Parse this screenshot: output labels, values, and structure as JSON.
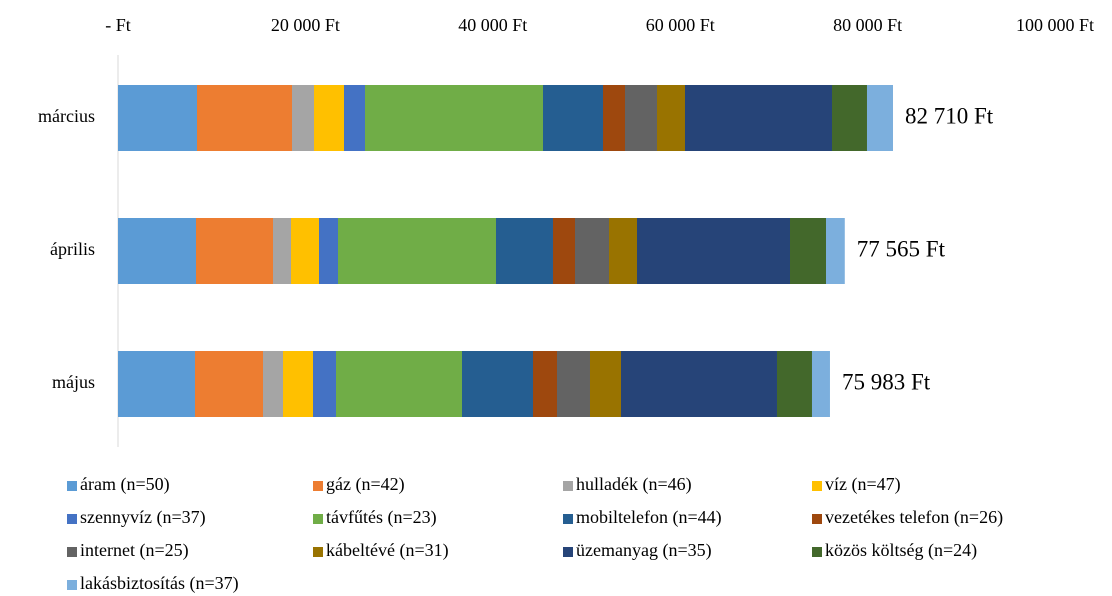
{
  "chart_data": {
    "type": "stacked-barh",
    "categories": [
      "március",
      "április",
      "május"
    ],
    "series": [
      {
        "name": "áram (n=50)",
        "color": "#5b9bd5",
        "values": [
          8431,
          8324,
          8218
        ]
      },
      {
        "name": "gáz (n=42)",
        "color": "#ed7d31",
        "values": [
          10139,
          8218,
          7257
        ]
      },
      {
        "name": "hulladék (n=46)",
        "color": "#a5a5a5",
        "values": [
          2348,
          1921,
          2134
        ]
      },
      {
        "name": "víz (n=47)",
        "color": "#ffc000",
        "values": [
          3202,
          2988,
          3202
        ]
      },
      {
        "name": "szennyvíz (n=37)",
        "color": "#4472c4",
        "values": [
          2241,
          2028,
          2455
        ]
      },
      {
        "name": "távfűtés (n=23)",
        "color": "#70ad47",
        "values": [
          18997,
          16862,
          13447
        ]
      },
      {
        "name": "mobiltelefon (n=44)",
        "color": "#255e91",
        "values": [
          6403,
          6083,
          7577
        ]
      },
      {
        "name": "vezetékes telefon (n=26)",
        "color": "#9e480e",
        "values": [
          2348,
          2348,
          2561
        ]
      },
      {
        "name": "internet (n=25)",
        "color": "#636363",
        "values": [
          3415,
          3629,
          3522
        ]
      },
      {
        "name": "kábeltévé (n=31)",
        "color": "#997300",
        "values": [
          2988,
          2988,
          3308
        ]
      },
      {
        "name": "üzemanyag (n=35)",
        "color": "#264478",
        "values": [
          15688,
          16329,
          16649
        ]
      },
      {
        "name": "közös költség (n=24)",
        "color": "#43682b",
        "values": [
          3735,
          3842,
          3735
        ]
      },
      {
        "name": "lakásbiztosítás (n=37)",
        "color": "#7cafdd",
        "values": [
          2775,
          2005,
          1918
        ]
      }
    ],
    "totals": [
      82710,
      77565,
      75983
    ],
    "total_labels": [
      "82 710 Ft",
      "77 565 Ft",
      "75 983 Ft"
    ],
    "xlim": [
      0,
      100000
    ],
    "xticks": [
      {
        "value": 0,
        "label": "-   Ft"
      },
      {
        "value": 20000,
        "label": "20 000 Ft"
      },
      {
        "value": 40000,
        "label": "40 000 Ft"
      },
      {
        "value": 60000,
        "label": "60 000 Ft"
      },
      {
        "value": 80000,
        "label": "80 000 Ft"
      },
      {
        "value": 100000,
        "label": "100 000 Ft"
      }
    ],
    "legend": "bottom"
  }
}
